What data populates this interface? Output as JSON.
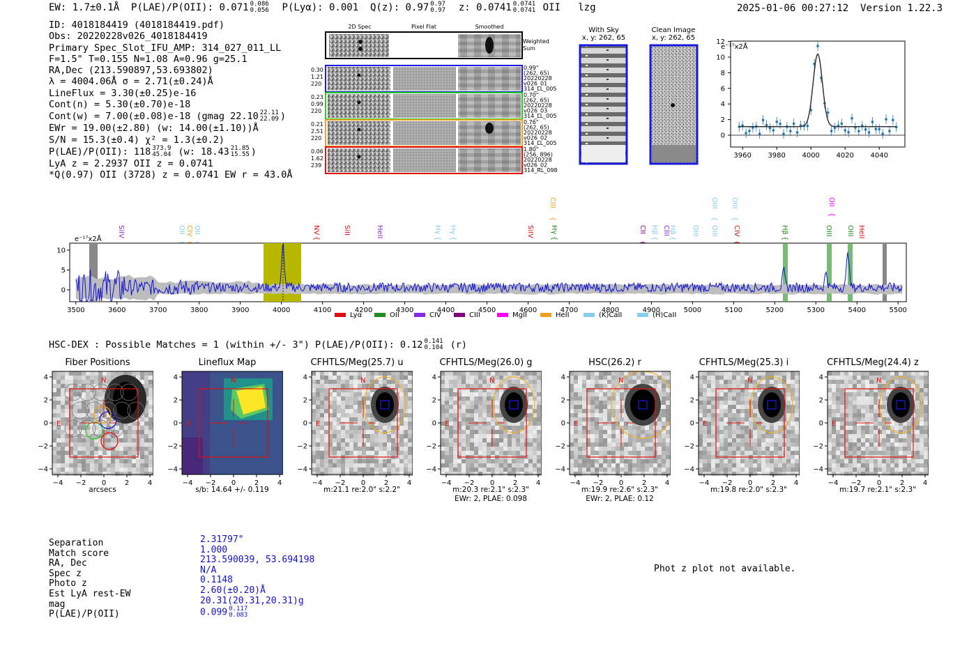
{
  "header": {
    "ew": "EW: 1.7±0.1Å",
    "plae_label": "P(LAE)/P(OII): 0.071",
    "plae_hi": "0.086",
    "plae_lo": "0.056",
    "plya": "P(Lyα): 0.001",
    "qz_label": "Q(z): 0.97",
    "qz_hi": "0.97",
    "qz_lo": "0.97",
    "z_label": "z: 0.0741",
    "z_hi": "0.0741",
    "z_lo": "0.0741",
    "z_line": "OII",
    "tag": "lzg",
    "timestamp": "2025-01-06 00:27:12",
    "version": "Version 1.22.3"
  },
  "info": {
    "id": "ID: 4018184419 (4018184419.pdf)",
    "obs": "Obs: 20220228v026_4018184419",
    "primary": "Primary Spec_Slot_IFU_AMP: 314_027_011_LL",
    "params": "F=1.5\"  T=0.155  N=1.08  A=0.96  g=25.1",
    "radec": "RA,Dec (213.590897,53.693802)",
    "lambda": "λ = 4004.06Å  σ = 2.71(±0.24)Å",
    "lineflux": "LineFlux = 3.30(±0.25)e-16",
    "contn": "Cont(n) = 5.30(±0.70)e-18",
    "contw": "Cont(w) = 7.00(±0.08)e-18 (gmag 22.10",
    "contw_hi": "22.11",
    "contw_lo": "22.09",
    "ewr": "EWr = 19.00(±2.80) (w: 14.00(±1.10))Å",
    "sn": "S/N = 15.3(±0.4)  χ² = 1.3(±0.2)",
    "plae": "P(LAE)/P(OII): 118",
    "plae_hi": "373.9",
    "plae_lo": "45.04",
    "plae_w": "(w: 18.43",
    "plae_w_hi": "21.85",
    "plae_w_lo": "15.55",
    "lya": "LyA z = 2.2937  OII z = 0.0741",
    "q": "*Q(0.97) OII (3728) z = 0.0741  EW r = 43.0Å"
  },
  "panels": {
    "col_2d": "2D Spec",
    "col_flat": "Pixel Flat",
    "col_smooth": "Smoothed",
    "weighted": "Weighted\nSum",
    "rows": [
      {
        "w1": "0.30",
        "w2": "1.21",
        "w3": "220",
        "d1": "0.99\"",
        "d2": "(262, 65)",
        "d3": "20220228",
        "d4": "v026_01",
        "d5": "314_LL_005",
        "color": "#1a1adc"
      },
      {
        "w1": "0.23",
        "w2": "0.99",
        "w3": "220",
        "d1": "0.70\"",
        "d2": "(262, 65)",
        "d3": "20220228",
        "d4": "v026_03",
        "d5": "314_LL_005",
        "color": "#22cc22"
      },
      {
        "w1": "0.21",
        "w2": "2.51",
        "w3": "220",
        "d1": "0.76\"",
        "d2": "(262, 65)",
        "d3": "20220228",
        "d4": "v026_02",
        "d5": "314_LL_005",
        "color": "#f0a020"
      },
      {
        "w1": "0.06",
        "w2": "1.62",
        "w3": "239",
        "d1": "1.80\"",
        "d2": "(256, 896)",
        "d3": "20220228",
        "d4": "v026_02",
        "d5": "314_RL_098",
        "color": "#e01010"
      }
    ],
    "with_sky": "With Sky",
    "with_sky_xy": "x, y: 262, 65",
    "clean": "Clean Image",
    "clean_xy": "x, y: 262, 65"
  },
  "zoom_plot": {
    "ylabel": "e⁻¹⁷x2Å",
    "yticks": [
      "12",
      "10",
      "8",
      "6",
      "4",
      "2",
      "0"
    ],
    "xticks": [
      "3960",
      "3980",
      "4000",
      "4020",
      "4040"
    ]
  },
  "spectrum": {
    "ylabel": "e⁻¹⁷x2Å",
    "yticks": [
      "10",
      "5",
      "0"
    ],
    "xticks": [
      "3500",
      "3600",
      "3700",
      "3800",
      "3900",
      "4000",
      "4100",
      "4200",
      "4300",
      "4400",
      "4500",
      "4600",
      "4700",
      "4800",
      "4900",
      "5000",
      "5100",
      "5200",
      "5300",
      "5400",
      "5500"
    ],
    "lines": [
      {
        "label": "SiIV",
        "x": 175,
        "y": 323,
        "color": "#8a2be2"
      },
      {
        "label": "OII",
        "x": 262,
        "y": 323,
        "color": "#87ceeb"
      },
      {
        "label": "CIV",
        "x": 273,
        "y": 323,
        "color": "#f0a020"
      },
      {
        "label": "OII",
        "x": 284,
        "y": 323,
        "color": "#87ceeb"
      },
      {
        "label": "NV",
        "x": 455,
        "y": 323,
        "color": "#e01010"
      },
      {
        "label": "SiII",
        "x": 499,
        "y": 323,
        "color": "#e01010"
      },
      {
        "label": "HeII",
        "x": 546,
        "y": 323,
        "color": "#8a2be2"
      },
      {
        "label": "Hγ",
        "x": 629,
        "y": 323,
        "color": "#87ceeb"
      },
      {
        "label": "Hγ",
        "x": 651,
        "y": 323,
        "color": "#87ceeb"
      },
      {
        "label": "SiIV",
        "x": 762,
        "y": 323,
        "color": "#e01010"
      },
      {
        "label": "Hγ",
        "x": 796,
        "y": 323,
        "color": "#228b22"
      },
      {
        "label": "CIII",
        "x": 794,
        "y": 283,
        "color": "#f0a020"
      },
      {
        "label": "CII",
        "x": 923,
        "y": 323,
        "color": "#800080"
      },
      {
        "label": "Hβ",
        "x": 940,
        "y": 323,
        "color": "#87ceeb"
      },
      {
        "label": "CIII",
        "x": 957,
        "y": 323,
        "color": "#8a2be2"
      },
      {
        "label": "Hβ",
        "x": 966,
        "y": 323,
        "color": "#87ceeb"
      },
      {
        "label": "OIII",
        "x": 999,
        "y": 323,
        "color": "#87ceeb"
      },
      {
        "label": "OIII",
        "x": 1026,
        "y": 323,
        "color": "#87ceeb"
      },
      {
        "label": "OIII",
        "x": 1026,
        "y": 283,
        "color": "#87ceeb"
      },
      {
        "label": "OIII",
        "x": 1055,
        "y": 283,
        "color": "#87ceeb"
      },
      {
        "label": "CIV",
        "x": 1058,
        "y": 323,
        "color": "#e01010"
      },
      {
        "label": "Hβ",
        "x": 1127,
        "y": 323,
        "color": "#228b22"
      },
      {
        "label": "OIII",
        "x": 1190,
        "y": 323,
        "color": "#228b22"
      },
      {
        "label": "OII",
        "x": 1194,
        "y": 283,
        "color": "#ff00ff"
      },
      {
        "label": "OIII",
        "x": 1221,
        "y": 323,
        "color": "#228b22"
      },
      {
        "label": "HeII",
        "x": 1237,
        "y": 323,
        "color": "#e01010"
      }
    ],
    "legend": [
      {
        "label": "Lyα",
        "color": "#e01010"
      },
      {
        "label": "OII",
        "color": "#228b22"
      },
      {
        "label": "CIV",
        "color": "#8a2be2"
      },
      {
        "label": "CIII",
        "color": "#800080"
      },
      {
        "label": "MgII",
        "color": "#ff00ff"
      },
      {
        "label": "HeII",
        "color": "#f0a020"
      },
      {
        "label": "(K)CaII",
        "color": "#87ceeb"
      },
      {
        "label": "(H)CaII",
        "color": "#87ceeb"
      }
    ]
  },
  "hsc": {
    "title": "HSC-DEX : Possible Matches = 1 (within +/- 3\")  P(LAE)/P(OII): 0.12",
    "hi": "0.141",
    "lo": "0.104",
    "band": "(r)"
  },
  "cutouts": [
    {
      "title": "Fiber Positions",
      "caption1": "arcsecs",
      "caption2": ""
    },
    {
      "title": "Lineflux Map",
      "caption1": "s/b: 14.64 +/- 0.119",
      "caption2": ""
    },
    {
      "title": "CFHTLS/Meg(25.7) u",
      "caption1": "m:21.1  re:2.0\"  s:2.2\"",
      "caption2": ""
    },
    {
      "title": "CFHTLS/Meg(26.0) g",
      "caption1": "m:20.3  re:2.1\"  s:2.3\"",
      "caption2": "EWr: 2, PLAE: 0.098"
    },
    {
      "title": "HSC(26.2) r",
      "caption1": "m:19.9  re:2.6\"  s:2.3\"",
      "caption2": "EWr: 2, PLAE: 0.12"
    },
    {
      "title": "CFHTLS/Meg(25.3) i",
      "caption1": "m:19.8  re:2.0\"  s:2.3\"",
      "caption2": ""
    },
    {
      "title": "CFHTLS/Meg(24.4) z",
      "caption1": "m:19.7  re:2.1\"  s:2.3\"",
      "caption2": ""
    }
  ],
  "cut_axis": {
    "ticks": [
      "4",
      "2",
      "0",
      "−2",
      "−4"
    ],
    "xticks": [
      "−4",
      "−2",
      "0",
      "2",
      "4"
    ],
    "n": "N",
    "e": "E"
  },
  "match_table": {
    "labels": [
      "Separation",
      "Match score",
      "RA, Dec",
      "Spec z",
      "Photo z",
      "Est LyA rest-EW",
      "mag",
      "P(LAE)/P(OII)"
    ],
    "values": [
      "2.31797\"",
      "1.000",
      "213.590039, 53.694198",
      "N/A",
      "0.1148",
      "2.60(±0.20)Å",
      "20.31(20.31,20.31)g",
      "0.099"
    ],
    "plae_hi": "0.117",
    "plae_lo": "0.083"
  },
  "photz_msg": "Phot z plot not available."
}
